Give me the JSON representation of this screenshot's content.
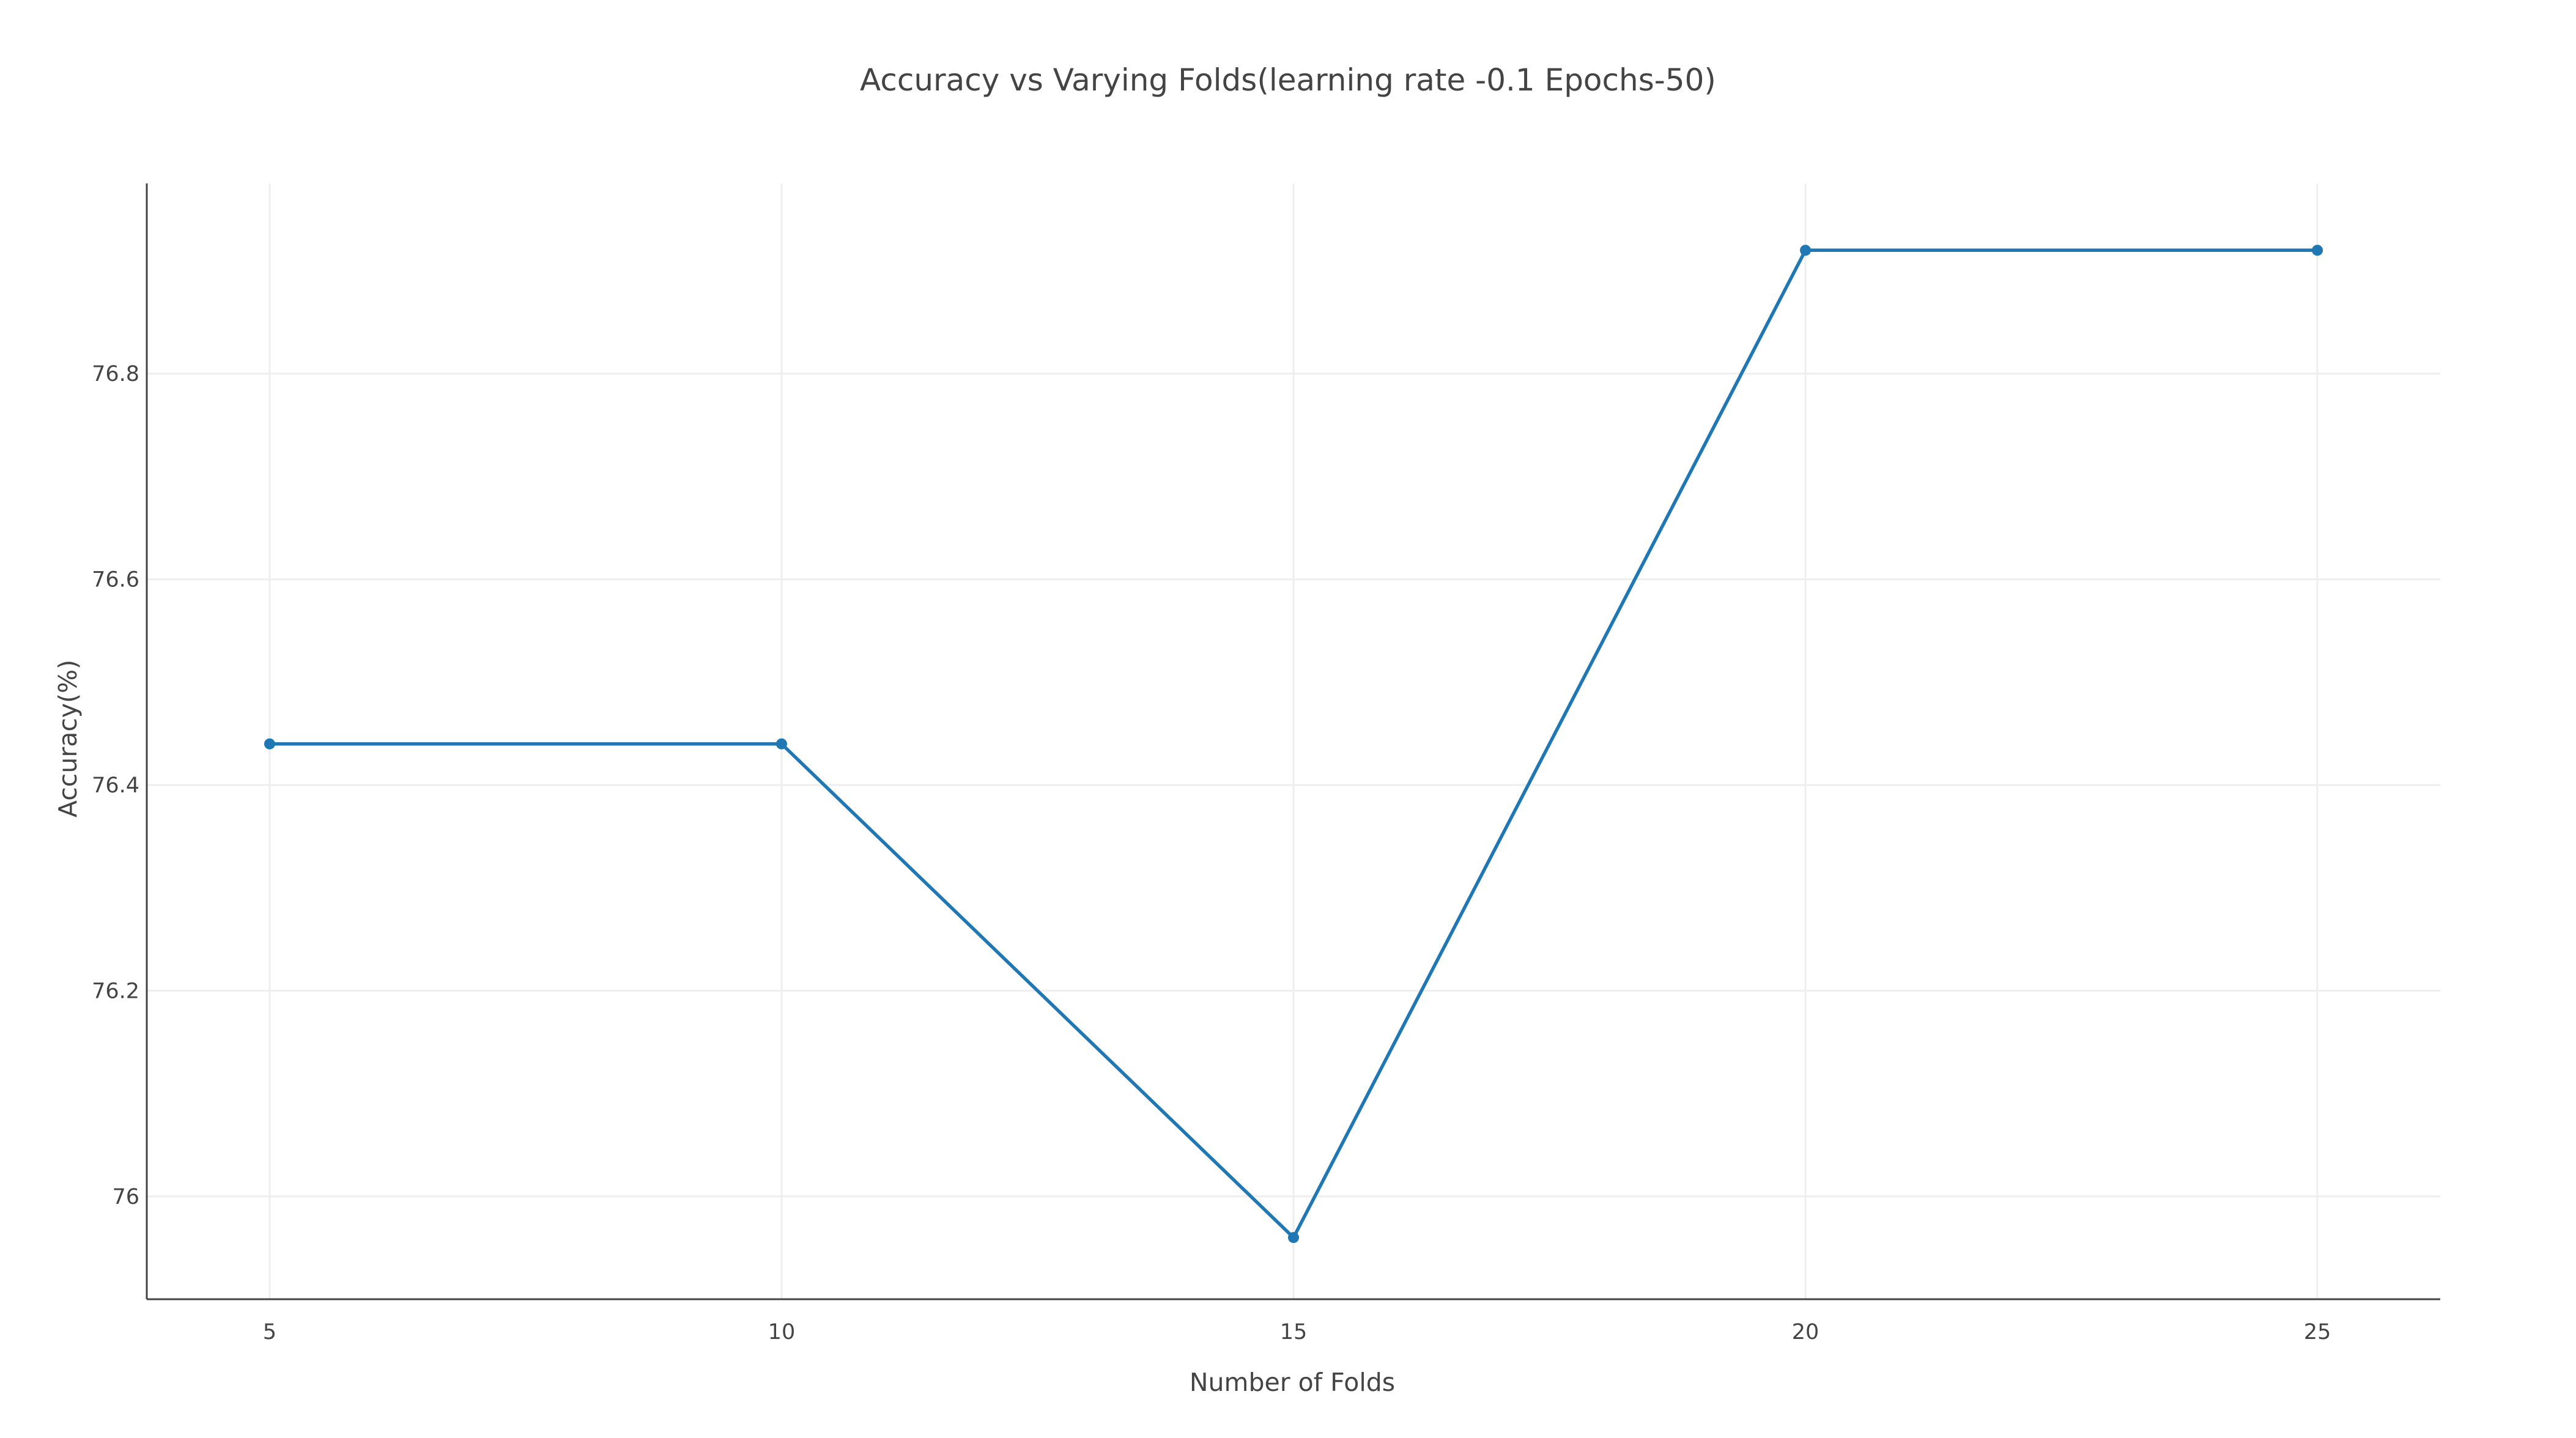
{
  "chart_data": {
    "type": "line",
    "title": "Accuracy vs Varying Folds(learning rate -0.1 Epochs-50)",
    "xlabel": "Number of Folds",
    "ylabel": "Accuracy(%)",
    "xlim": [
      3.8,
      26.2
    ],
    "ylim": [
      75.9,
      76.985
    ],
    "x_ticks": [
      5,
      10,
      15,
      20,
      25
    ],
    "x_tick_labels": [
      "5",
      "10",
      "15",
      "20",
      "25"
    ],
    "y_ticks": [
      76.0,
      76.2,
      76.4,
      76.6,
      76.8
    ],
    "y_tick_labels": [
      "76",
      "76.2",
      "76.4",
      "76.6",
      "76.8"
    ],
    "grid": true,
    "legend": "none",
    "series": [
      {
        "color": "#1f77b4",
        "x": [
          5,
          10,
          15,
          20,
          25
        ],
        "y": [
          76.44,
          76.44,
          75.96,
          76.92,
          76.92
        ]
      }
    ]
  }
}
